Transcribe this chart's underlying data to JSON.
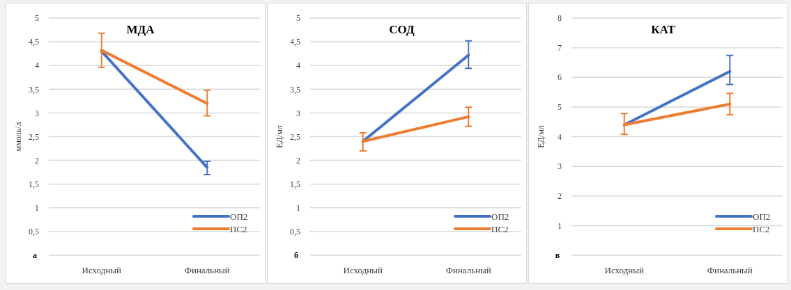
{
  "chart_data": [
    {
      "type": "line",
      "title": "МДА",
      "ylabel": "ммоль/л",
      "categories": [
        "Исходный",
        "Финальный"
      ],
      "ylim": [
        0,
        5
      ],
      "yticks": [
        {
          "value": 0,
          "label": null
        },
        {
          "value": 0.5,
          "label": "0,5"
        },
        1,
        {
          "value": 1.5,
          "label": "1,5"
        },
        2,
        {
          "value": 2.5,
          "label": "2,5"
        },
        3,
        {
          "value": 3.5,
          "label": "3,5"
        },
        4,
        {
          "value": 4.5,
          "label": "4,5"
        },
        5
      ],
      "grid": "y",
      "legend": "bottom right",
      "marker": "none",
      "line_style": "solid",
      "annotations": [
        "а"
      ],
      "series": [
        {
          "name": "ОП2",
          "color": "#4472c4",
          "values": [
            4.3,
            1.85
          ],
          "errors": [
            null,
            [
              1.7,
              1.98
            ]
          ]
        },
        {
          "name": "ПС2",
          "color": "#ed7d31",
          "values": [
            4.32,
            3.2
          ],
          "errors": [
            [
              3.96,
              4.68
            ],
            [
              2.94,
              3.48
            ]
          ]
        }
      ]
    },
    {
      "type": "line",
      "title": "СОД",
      "ylabel": "ЕД/мл",
      "categories": [
        "Исходный",
        "Финальный"
      ],
      "ylim": [
        0,
        5
      ],
      "yticks": [
        {
          "value": 0,
          "label": null
        },
        {
          "value": 0.5,
          "label": "0,5"
        },
        1,
        {
          "value": 1.5,
          "label": "1,5"
        },
        2,
        {
          "value": 2.5,
          "label": "2,5"
        },
        3,
        {
          "value": 3.5,
          "label": "3,5"
        },
        4,
        {
          "value": 4.5,
          "label": "4,5"
        },
        5
      ],
      "grid": "y",
      "legend": "bottom right",
      "marker": "none",
      "line_style": "solid",
      "annotations": [
        "б"
      ],
      "series": [
        {
          "name": "ОП2",
          "color": "#4472c4",
          "values": [
            2.4,
            4.22
          ],
          "errors": [
            null,
            [
              3.94,
              4.52
            ]
          ]
        },
        {
          "name": "ПС2",
          "color": "#ed7d31",
          "values": [
            2.4,
            2.92
          ],
          "errors": [
            [
              2.2,
              2.58
            ],
            [
              2.72,
              3.12
            ]
          ]
        }
      ]
    },
    {
      "type": "line",
      "title": "КАТ",
      "ylabel": "ЕД/мл",
      "categories": [
        "Исходный",
        "Финальный"
      ],
      "ylim": [
        0,
        8
      ],
      "yticks": [
        {
          "value": 0,
          "label": null
        },
        1,
        2,
        3,
        4,
        5,
        6,
        7,
        8
      ],
      "grid": "y",
      "legend": "bottom right",
      "marker": "none",
      "line_style": "solid",
      "annotations": [
        "в"
      ],
      "series": [
        {
          "name": "ОП2",
          "color": "#4472c4",
          "values": [
            4.4,
            6.2
          ],
          "errors": [
            null,
            [
              5.76,
              6.74
            ]
          ]
        },
        {
          "name": "ПС2",
          "color": "#ed7d31",
          "values": [
            4.4,
            5.1
          ],
          "errors": [
            [
              4.08,
              4.78
            ],
            [
              4.74,
              5.46
            ]
          ]
        }
      ]
    }
  ]
}
